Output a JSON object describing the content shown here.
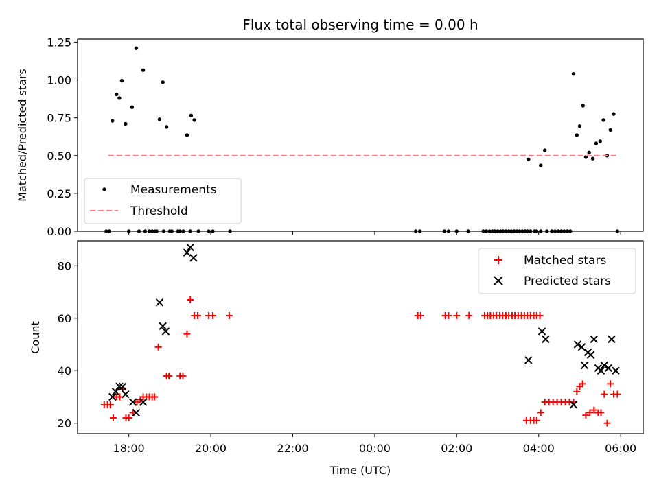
{
  "title": "Flux total observing time = 0.00 h",
  "chart_data": [
    {
      "type": "scatter",
      "ylabel": "Matched/Predicted stars",
      "xlim_hours": [
        16.75,
        30.55
      ],
      "ylim": [
        0.0,
        1.27
      ],
      "ytick_labels": [
        "0.00",
        "0.25",
        "0.50",
        "0.75",
        "1.00",
        "1.25"
      ],
      "grid": false,
      "legend_placement": "lower-left",
      "series": [
        {
          "name": "Measurements",
          "marker": "dot",
          "color": "#000000",
          "points": [
            [
              17.6,
              0.73
            ],
            [
              17.7,
              0.905
            ],
            [
              17.77,
              0.88
            ],
            [
              17.83,
              0.995
            ],
            [
              17.92,
              0.71
            ],
            [
              18.08,
              0.82
            ],
            [
              18.18,
              1.21
            ],
            [
              18.35,
              1.065
            ],
            [
              18.75,
              0.74
            ],
            [
              18.83,
              0.985
            ],
            [
              18.92,
              0.69
            ],
            [
              19.42,
              0.635
            ],
            [
              19.52,
              0.765
            ],
            [
              19.6,
              0.735
            ],
            [
              17.45,
              0.0
            ],
            [
              17.52,
              0.0
            ],
            [
              18.0,
              0.0
            ],
            [
              18.25,
              0.0
            ],
            [
              18.4,
              0.0
            ],
            [
              18.5,
              0.0
            ],
            [
              18.57,
              0.0
            ],
            [
              18.63,
              0.0
            ],
            [
              18.68,
              0.0
            ],
            [
              18.85,
              0.0
            ],
            [
              19.0,
              0.0
            ],
            [
              19.05,
              0.0
            ],
            [
              19.2,
              0.0
            ],
            [
              19.25,
              0.0
            ],
            [
              19.33,
              0.0
            ],
            [
              19.5,
              0.0
            ],
            [
              19.7,
              0.0
            ],
            [
              19.95,
              0.0
            ],
            [
              20.05,
              0.0
            ],
            [
              20.47,
              0.0
            ],
            [
              25.0,
              0.0
            ],
            [
              25.1,
              0.0
            ],
            [
              25.7,
              0.0
            ],
            [
              25.8,
              0.0
            ],
            [
              26.0,
              0.0
            ],
            [
              26.28,
              0.0
            ],
            [
              26.65,
              0.0
            ],
            [
              26.72,
              0.0
            ],
            [
              26.8,
              0.0
            ],
            [
              26.87,
              0.0
            ],
            [
              26.93,
              0.0
            ],
            [
              27.0,
              0.0
            ],
            [
              27.07,
              0.0
            ],
            [
              27.13,
              0.0
            ],
            [
              27.2,
              0.0
            ],
            [
              27.27,
              0.0
            ],
            [
              27.33,
              0.0
            ],
            [
              27.4,
              0.0
            ],
            [
              27.47,
              0.0
            ],
            [
              27.53,
              0.0
            ],
            [
              27.6,
              0.0
            ],
            [
              27.67,
              0.0
            ],
            [
              27.73,
              0.0
            ],
            [
              27.8,
              0.0
            ],
            [
              27.9,
              0.0
            ],
            [
              27.95,
              0.0
            ],
            [
              28.05,
              0.0
            ],
            [
              28.2,
              0.0
            ],
            [
              28.32,
              0.0
            ],
            [
              28.4,
              0.0
            ],
            [
              28.48,
              0.0
            ],
            [
              28.55,
              0.0
            ],
            [
              28.62,
              0.0
            ],
            [
              28.7,
              0.0
            ],
            [
              28.77,
              0.0
            ],
            [
              29.92,
              0.0
            ],
            [
              27.75,
              0.475
            ],
            [
              28.05,
              0.435
            ],
            [
              28.15,
              0.535
            ],
            [
              28.85,
              1.04
            ],
            [
              28.93,
              0.635
            ],
            [
              29.0,
              0.695
            ],
            [
              29.08,
              0.83
            ],
            [
              29.15,
              0.49
            ],
            [
              29.23,
              0.52
            ],
            [
              29.32,
              0.48
            ],
            [
              29.4,
              0.58
            ],
            [
              29.5,
              0.595
            ],
            [
              29.58,
              0.735
            ],
            [
              29.67,
              0.5
            ],
            [
              29.75,
              0.67
            ],
            [
              29.83,
              0.775
            ]
          ]
        },
        {
          "name": "Threshold",
          "style": "dashed",
          "color": "#ff8080",
          "x": [
            17.5,
            29.95
          ],
          "y": [
            0.5,
            0.5
          ]
        }
      ]
    },
    {
      "type": "scatter",
      "xlabel": "Time (UTC)",
      "ylabel": "Count",
      "xlim_hours": [
        16.75,
        30.55
      ],
      "ylim": [
        16.0,
        89.5
      ],
      "ytick_values": [
        20,
        40,
        60,
        80
      ],
      "xtick_hours": [
        18,
        20,
        22,
        24,
        26,
        28,
        30
      ],
      "xtick_labels": [
        "18:00",
        "20:00",
        "22:00",
        "00:00",
        "02:00",
        "04:00",
        "06:00"
      ],
      "grid": false,
      "legend_placement": "upper-right",
      "series": [
        {
          "name": "Matched stars",
          "marker": "plus",
          "color": "#ff0000",
          "points": [
            [
              17.4,
              27
            ],
            [
              17.48,
              27
            ],
            [
              17.55,
              27
            ],
            [
              17.62,
              22
            ],
            [
              17.7,
              30
            ],
            [
              17.78,
              30
            ],
            [
              17.85,
              33
            ],
            [
              17.93,
              22
            ],
            [
              18.0,
              22
            ],
            [
              18.1,
              24
            ],
            [
              18.2,
              28
            ],
            [
              18.28,
              29
            ],
            [
              18.35,
              30
            ],
            [
              18.43,
              30
            ],
            [
              18.5,
              30
            ],
            [
              18.57,
              30
            ],
            [
              18.63,
              30
            ],
            [
              18.72,
              49
            ],
            [
              18.92,
              38
            ],
            [
              18.98,
              38
            ],
            [
              19.25,
              38
            ],
            [
              19.32,
              38
            ],
            [
              19.42,
              54
            ],
            [
              19.5,
              67
            ],
            [
              19.6,
              61
            ],
            [
              19.68,
              61
            ],
            [
              19.95,
              61
            ],
            [
              20.05,
              61
            ],
            [
              20.45,
              61
            ],
            [
              25.05,
              61
            ],
            [
              25.12,
              61
            ],
            [
              25.72,
              61
            ],
            [
              25.8,
              61
            ],
            [
              26.0,
              61
            ],
            [
              26.3,
              61
            ],
            [
              26.68,
              61
            ],
            [
              26.75,
              61
            ],
            [
              26.82,
              61
            ],
            [
              26.9,
              61
            ],
            [
              26.97,
              61
            ],
            [
              27.05,
              61
            ],
            [
              27.12,
              61
            ],
            [
              27.2,
              61
            ],
            [
              27.27,
              61
            ],
            [
              27.35,
              61
            ],
            [
              27.42,
              61
            ],
            [
              27.5,
              61
            ],
            [
              27.58,
              61
            ],
            [
              27.65,
              61
            ],
            [
              27.72,
              61
            ],
            [
              27.8,
              61
            ],
            [
              27.88,
              61
            ],
            [
              27.95,
              61
            ],
            [
              28.03,
              61
            ],
            [
              27.7,
              21
            ],
            [
              27.8,
              21
            ],
            [
              27.88,
              21
            ],
            [
              27.95,
              21
            ],
            [
              28.05,
              24
            ],
            [
              28.15,
              28
            ],
            [
              28.25,
              28
            ],
            [
              28.35,
              28
            ],
            [
              28.45,
              28
            ],
            [
              28.55,
              28
            ],
            [
              28.65,
              28
            ],
            [
              28.75,
              28
            ],
            [
              28.85,
              28
            ],
            [
              28.93,
              32
            ],
            [
              29.0,
              34
            ],
            [
              29.07,
              35
            ],
            [
              29.15,
              23
            ],
            [
              29.25,
              24
            ],
            [
              29.35,
              25
            ],
            [
              29.45,
              24
            ],
            [
              29.52,
              24
            ],
            [
              29.6,
              31
            ],
            [
              29.67,
              20
            ],
            [
              29.75,
              35
            ],
            [
              29.83,
              31
            ],
            [
              29.92,
              31
            ]
          ]
        },
        {
          "name": "Predicted stars",
          "marker": "x",
          "color": "#000000",
          "points": [
            [
              17.6,
              30
            ],
            [
              17.68,
              32
            ],
            [
              17.77,
              34
            ],
            [
              17.85,
              34
            ],
            [
              17.92,
              31
            ],
            [
              18.1,
              28
            ],
            [
              18.18,
              24
            ],
            [
              18.35,
              28
            ],
            [
              18.75,
              66
            ],
            [
              18.83,
              57
            ],
            [
              18.9,
              55
            ],
            [
              19.42,
              85
            ],
            [
              19.5,
              87
            ],
            [
              19.58,
              83
            ],
            [
              27.75,
              44
            ],
            [
              28.08,
              55
            ],
            [
              28.17,
              52
            ],
            [
              28.85,
              27
            ],
            [
              28.95,
              50
            ],
            [
              29.05,
              49
            ],
            [
              29.12,
              42
            ],
            [
              29.2,
              47
            ],
            [
              29.27,
              46
            ],
            [
              29.35,
              52
            ],
            [
              29.45,
              41
            ],
            [
              29.52,
              40
            ],
            [
              29.6,
              42
            ],
            [
              29.7,
              41
            ],
            [
              29.78,
              52
            ],
            [
              29.88,
              40
            ]
          ]
        }
      ]
    }
  ]
}
